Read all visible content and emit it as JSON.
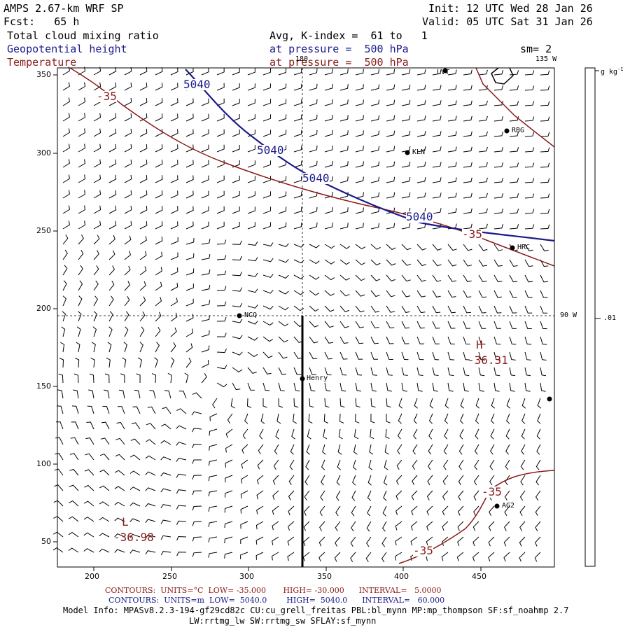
{
  "header": {
    "model": "AMPS 2.67-km WRF SP",
    "fcst": "Fcst:   65 h",
    "init": "Init: 12 UTC Wed 28 Jan 26",
    "valid": "Valid: 05 UTC Sat 31 Jan 26",
    "field1": "Total cloud mixing ratio",
    "field2": "Geopotential height",
    "field3": "Temperature",
    "avg": "Avg, K-index =  61 to   1",
    "pres1": "at pressure =  500 hPa",
    "pres2": "at pressure =  500 hPa",
    "sm": "sm= 2"
  },
  "map": {
    "lon_labels": [
      "180",
      "135 W",
      "90 W"
    ],
    "x_ticks": [
      "200",
      "250",
      "300",
      "350",
      "400",
      "450"
    ],
    "y_ticks": [
      "350",
      "300",
      "250",
      "200",
      "150",
      "100",
      "50"
    ],
    "stations": [
      "LVT",
      "RBG",
      "KLN",
      "HRC",
      "NCQ",
      "Henry",
      "AG2"
    ],
    "height_labels": [
      "5040",
      "5040",
      "5040",
      "5040"
    ],
    "temp_labels": [
      "-35",
      "-35",
      "-35",
      "-35"
    ],
    "high_label": "H",
    "high_value": "-36.31",
    "low_label": "L",
    "low_value": "-36.98"
  },
  "colorbar": {
    "units": "g kg",
    "units_sup": "-1",
    "value": ".01"
  },
  "footer": {
    "temp_contours": "CONTOURS:  UNITS=°C  LOW= -35.000       HIGH= -30.000      INTERVAL=   5.0000",
    "height_contours": "CONTOURS:  UNITS=m  LOW=  5040.0        HIGH=  5040.0      INTERVAL=   60.000",
    "model_info": "Model Info: MPASv8.2.3-194-gf29cd82c CU:cu_grell_freitas PBL:bl_mynn MP:mp_thompson SF:sf_noahmp 2.7",
    "model_info2": "LW:rrtmg_lw SW:rrtmg_sw SFLAY:sf_mynn"
  },
  "colors": {
    "height": "#1a1a8c",
    "temp": "#8b1a1a",
    "barb": "#000000"
  }
}
